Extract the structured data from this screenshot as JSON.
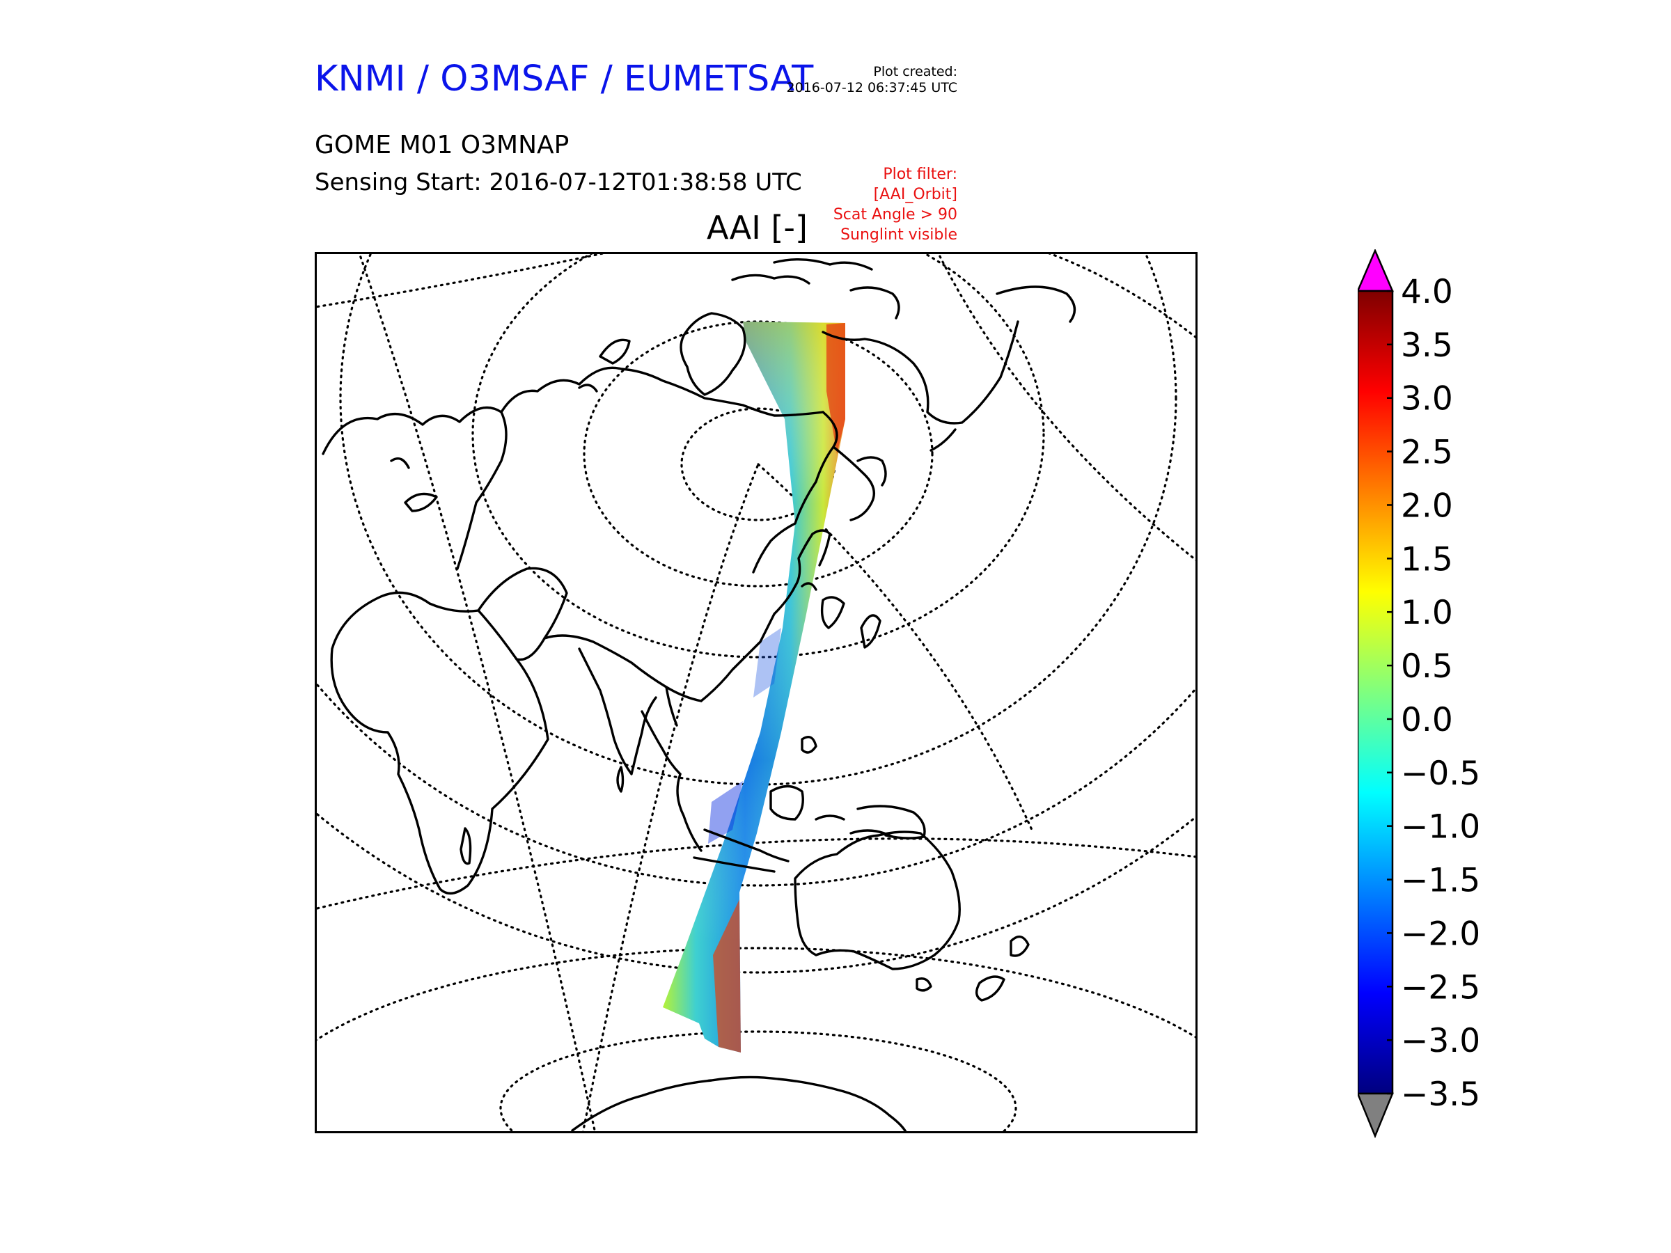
{
  "header": {
    "title": "KNMI / O3MSAF / EUMETSAT",
    "created_label": "Plot created:",
    "created_time": "2016-07-12 06:37:45 UTC",
    "product": "GOME M01 O3MNAP",
    "sensing": "Sensing Start: 2016-07-12T01:38:58 UTC",
    "variable": "AAI [-]"
  },
  "filter": {
    "heading": "Plot filter:",
    "lines": [
      "[AAI_Orbit]",
      "Scat Angle > 90",
      "Sunglint visible"
    ]
  },
  "map": {
    "projection": "orthographic",
    "graticule": "dotted",
    "coastline_color": "#000000",
    "swath_colormap": "jet"
  },
  "colorbar": {
    "ticks": [
      "4.0",
      "3.5",
      "3.0",
      "2.5",
      "2.0",
      "1.5",
      "1.0",
      "0.5",
      "0.0",
      "−0.5",
      "−1.0",
      "−1.5",
      "−2.0",
      "−2.5",
      "−3.0",
      "−3.5"
    ],
    "min": -3.5,
    "max": 4.0,
    "over_color": "#ff00ff",
    "under_color": "#808080",
    "colors": [
      "#00007f",
      "#0000ff",
      "#0080ff",
      "#00ffff",
      "#7fff7f",
      "#ffff00",
      "#ff8000",
      "#ff0000",
      "#7f0000"
    ]
  }
}
